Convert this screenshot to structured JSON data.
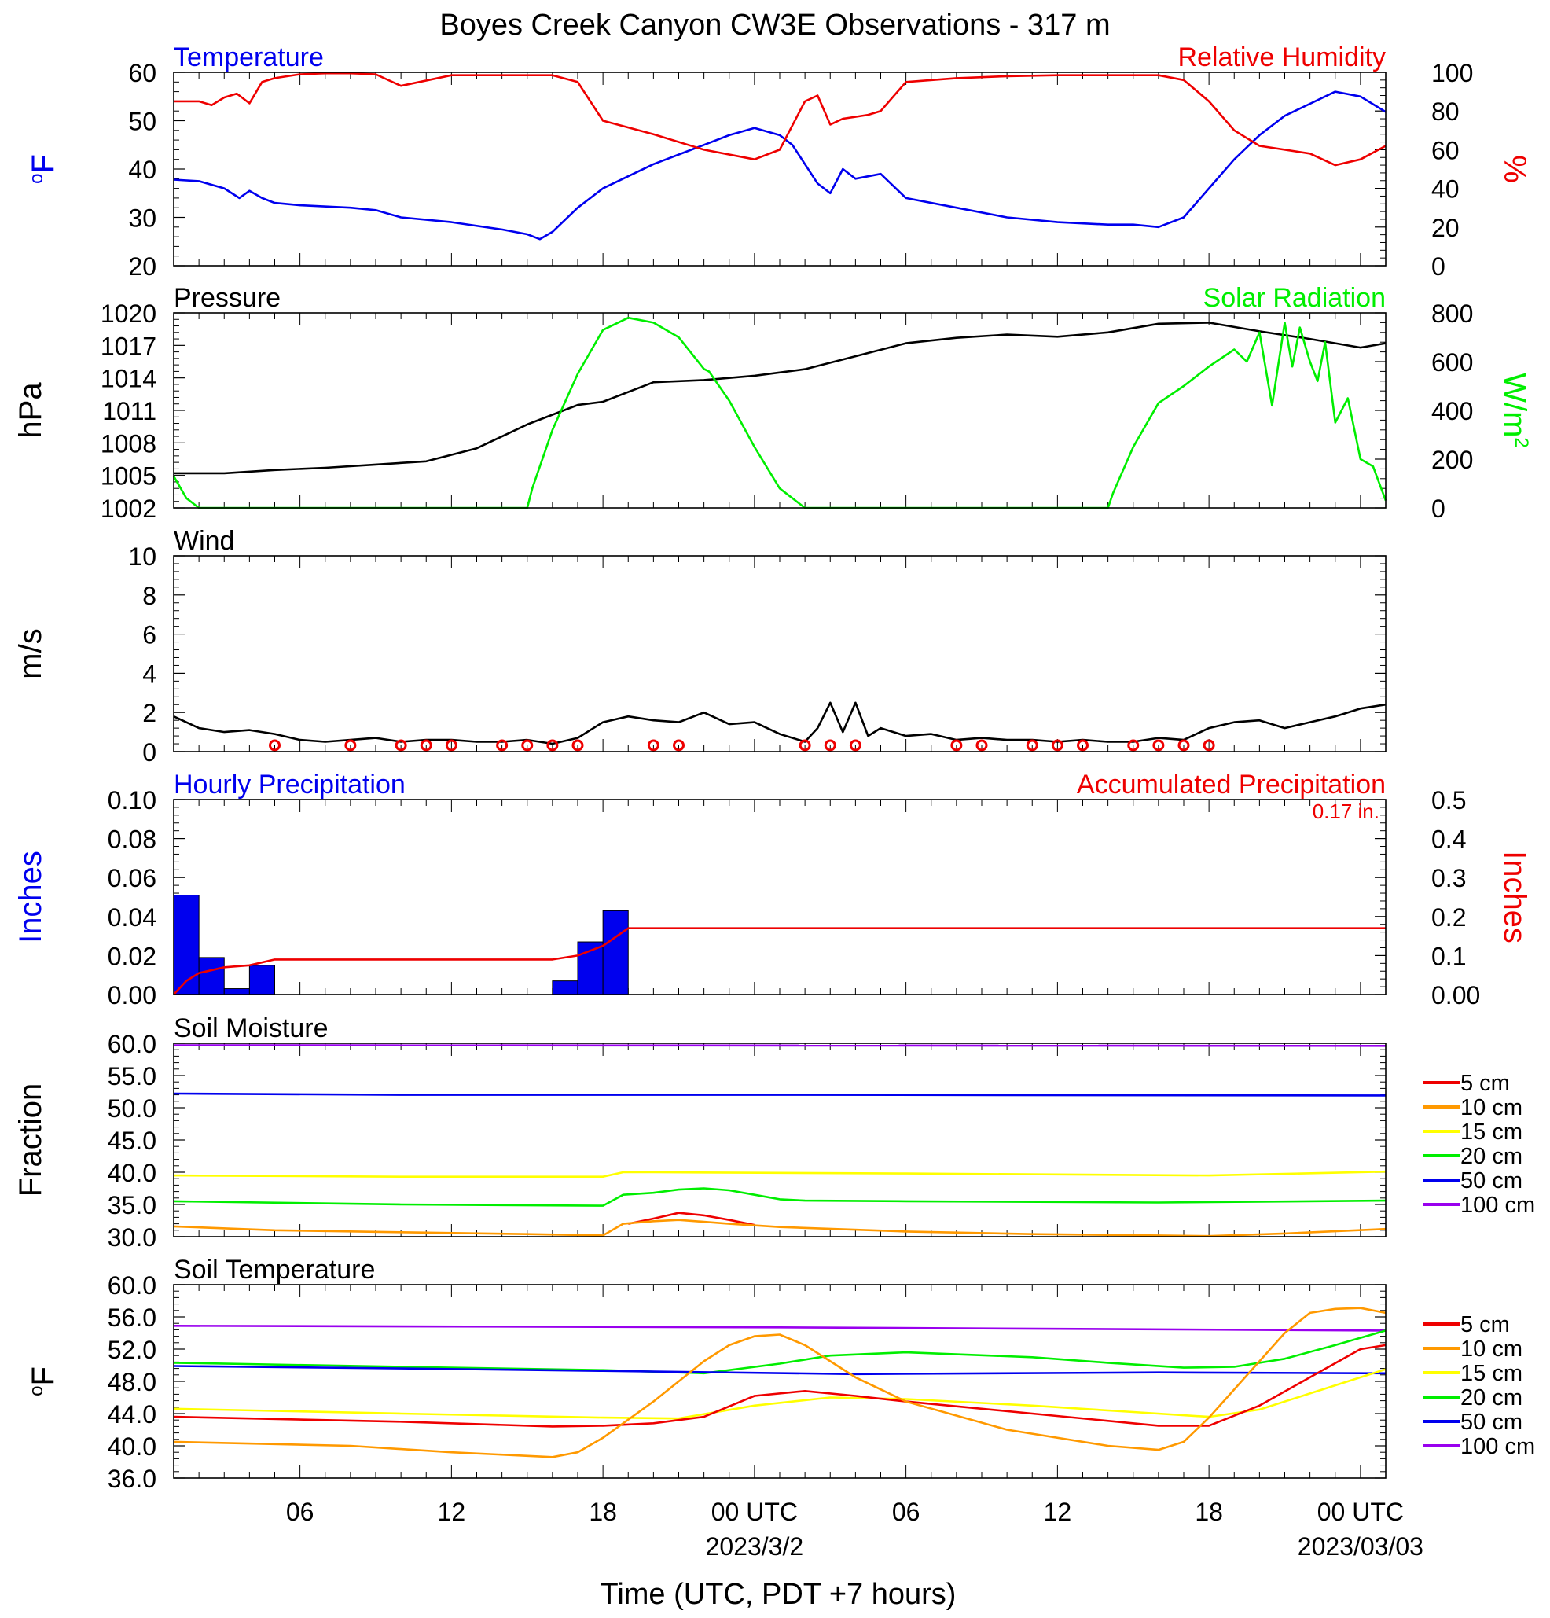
{
  "title": "Boyes Creek Canyon CW3E Observations - 317 m",
  "xaxis": {
    "ticks": [
      "06",
      "12",
      "18",
      "00 UTC",
      "06",
      "12",
      "18",
      "00 UTC"
    ],
    "tick_hours": [
      6,
      12,
      18,
      24,
      30,
      36,
      42,
      48
    ],
    "date_labels": [
      {
        "text": "2023/3/2",
        "hour": 24
      },
      {
        "text": "2023/03/03",
        "hour": 48
      }
    ],
    "label": "Time (UTC, PDT +7 hours)",
    "range_hours": [
      1,
      49
    ]
  },
  "colors": {
    "blue": "#0000ee",
    "red": "#ee0000",
    "green": "#00ee00",
    "black": "#000000",
    "orange": "#ff9900",
    "yellow": "#ffff00",
    "purple": "#9900ee"
  },
  "chart_data": [
    {
      "type": "line",
      "name": "temperature_rh",
      "left_title": "Temperature",
      "right_title": "Relative Humidity",
      "ylabel_left": "°F",
      "ylabel_right": "%",
      "yticks_left": [
        "60",
        "50",
        "40",
        "30",
        "20"
      ],
      "yticks_right": [
        "100",
        "80",
        "60",
        "40",
        "20",
        "0"
      ],
      "ylim_left": [
        20,
        60
      ],
      "ylim_right": [
        0,
        100
      ],
      "series": [
        {
          "axis": "left",
          "color": "#0000ee",
          "x": [
            1,
            2,
            3,
            3.6,
            4,
            4.5,
            5,
            6,
            8,
            9,
            10,
            12,
            14,
            15,
            15.5,
            16,
            17,
            18,
            20,
            22,
            23,
            24,
            25,
            25.5,
            26,
            26.5,
            27,
            27.5,
            28,
            29,
            30,
            32,
            34,
            36,
            38,
            39,
            40,
            41,
            42,
            43,
            44,
            45,
            46,
            47,
            48,
            49
          ],
          "y": [
            37.8,
            37.5,
            36,
            34,
            35.5,
            34,
            33,
            32.5,
            32,
            31.5,
            30,
            29,
            27.5,
            26.5,
            25.5,
            27,
            32,
            36,
            41,
            45,
            47,
            48.5,
            47,
            45,
            41,
            37,
            35,
            40,
            38,
            39,
            34,
            32,
            30,
            29,
            28.5,
            28.5,
            28,
            30,
            36,
            42,
            47,
            51,
            53.5,
            56,
            55,
            51.8
          ]
        },
        {
          "axis": "right",
          "color": "#ee0000",
          "x": [
            1,
            2,
            2.5,
            3,
            3.5,
            4,
            4.5,
            5,
            6,
            7,
            8,
            9,
            10,
            12,
            14,
            16,
            17,
            18,
            20,
            22,
            24,
            25,
            26,
            26.5,
            27,
            27.5,
            28,
            28.5,
            29,
            30,
            32,
            34,
            36,
            38,
            40,
            41,
            42,
            43,
            44,
            46,
            47,
            48,
            49
          ],
          "y": [
            85,
            85,
            83,
            87,
            89,
            84,
            95,
            97,
            99,
            99.5,
            99.5,
            99,
            93,
            98.5,
            98.5,
            98.5,
            95,
            75,
            68,
            60,
            55,
            60,
            85,
            88,
            73,
            76,
            77,
            78,
            80,
            95,
            97,
            98,
            98.5,
            98.5,
            98.5,
            96,
            85,
            70,
            62,
            58,
            52,
            55,
            62
          ]
        }
      ]
    },
    {
      "type": "line",
      "name": "pressure_solar",
      "left_title": "Pressure",
      "right_title": "Solar Radiation",
      "ylabel_left": "hPa",
      "ylabel_right": "W/m",
      "ylabel_right_sup": "2",
      "yticks_left": [
        "1020",
        "1017",
        "1014",
        "1011",
        "1008",
        "1005",
        "1002"
      ],
      "yticks_right": [
        "800",
        "600",
        "400",
        "200",
        "0"
      ],
      "ylim_left": [
        1002,
        1020
      ],
      "ylim_right": [
        0,
        800
      ],
      "series": [
        {
          "axis": "left",
          "color": "#000000",
          "x": [
            1,
            3,
            5,
            7,
            9,
            11,
            13,
            15,
            17,
            18,
            20,
            22,
            24,
            26,
            28,
            30,
            32,
            34,
            36,
            38,
            40,
            42,
            44,
            46,
            48,
            49
          ],
          "y": [
            1005.2,
            1005.2,
            1005.5,
            1005.7,
            1006,
            1006.3,
            1007.5,
            1009.7,
            1011.5,
            1011.8,
            1013.6,
            1013.8,
            1014.2,
            1014.8,
            1016,
            1017.2,
            1017.7,
            1018,
            1017.8,
            1018.2,
            1019,
            1019.1,
            1018.3,
            1017.6,
            1016.8,
            1017.2
          ]
        },
        {
          "axis": "right",
          "color": "#00ee00",
          "x": [
            1,
            1.5,
            2,
            15,
            15.2,
            16,
            17,
            18,
            19,
            20,
            21,
            22,
            22.2,
            23,
            24,
            25,
            26,
            27,
            38,
            38.2,
            39,
            40,
            41,
            42,
            43,
            43.5,
            44,
            44.5,
            45,
            45.3,
            45.6,
            46,
            46.3,
            46.6,
            47,
            47.5,
            48,
            48.5,
            49
          ],
          "y": [
            130,
            40,
            0,
            0,
            80,
            320,
            550,
            730,
            780,
            760,
            700,
            570,
            560,
            440,
            250,
            80,
            0,
            0,
            0,
            60,
            250,
            430,
            500,
            580,
            650,
            600,
            720,
            420,
            760,
            580,
            740,
            600,
            520,
            680,
            350,
            450,
            200,
            170,
            30
          ]
        }
      ]
    },
    {
      "type": "line",
      "name": "wind",
      "left_title": "Wind",
      "ylabel_left": "m/s",
      "yticks_left": [
        "10",
        "8",
        "6",
        "4",
        "2",
        "0"
      ],
      "ylim_left": [
        0,
        10
      ],
      "series": [
        {
          "axis": "left",
          "color": "#000000",
          "x": [
            1,
            2,
            3,
            4,
            5,
            6,
            7,
            8,
            9,
            10,
            11,
            12,
            13,
            14,
            15,
            16,
            17,
            18,
            19,
            20,
            21,
            22,
            23,
            24,
            25,
            26,
            26.5,
            27,
            27.5,
            28,
            28.5,
            29,
            30,
            31,
            32,
            33,
            34,
            35,
            36,
            37,
            38,
            39,
            40,
            41,
            42,
            43,
            44,
            45,
            46,
            47,
            48,
            49
          ],
          "y": [
            1.8,
            1.2,
            1.0,
            1.1,
            0.9,
            0.6,
            0.5,
            0.6,
            0.7,
            0.5,
            0.6,
            0.6,
            0.5,
            0.5,
            0.6,
            0.4,
            0.7,
            1.5,
            1.8,
            1.6,
            1.5,
            2.0,
            1.4,
            1.5,
            0.9,
            0.5,
            1.2,
            2.5,
            1.0,
            2.5,
            0.8,
            1.2,
            0.8,
            0.9,
            0.6,
            0.7,
            0.6,
            0.6,
            0.5,
            0.6,
            0.5,
            0.5,
            0.7,
            0.6,
            1.2,
            1.5,
            1.6,
            1.2,
            1.5,
            1.8,
            2.2,
            2.4
          ]
        }
      ],
      "barbs_color": "#ee0000"
    },
    {
      "type": "bar",
      "name": "precipitation",
      "left_title": "Hourly Precipitation",
      "right_title": "Accumulated Precipitation",
      "annotation": "0.17 in.",
      "ylabel_left": "Inches",
      "ylabel_right": "Inches",
      "yticks_left": [
        "0.10",
        "0.08",
        "0.06",
        "0.04",
        "0.02",
        "0.00"
      ],
      "yticks_right": [
        "0.5",
        "0.4",
        "0.3",
        "0.2",
        "0.1",
        "0.00"
      ],
      "ylim_left": [
        0,
        0.1
      ],
      "ylim_right": [
        0,
        0.5
      ],
      "bars": {
        "color": "#0000ee",
        "start_hours": [
          1,
          2,
          3,
          4,
          16,
          17,
          18
        ],
        "values": [
          0.051,
          0.019,
          0.003,
          0.015,
          0.007,
          0.027,
          0.043
        ]
      },
      "series": [
        {
          "axis": "right",
          "color": "#ee0000",
          "x": [
            1,
            1.5,
            2,
            3,
            4,
            5,
            6,
            16,
            17,
            18,
            19,
            49
          ],
          "y": [
            0.0,
            0.035,
            0.055,
            0.07,
            0.075,
            0.09,
            0.09,
            0.09,
            0.1,
            0.125,
            0.17,
            0.17
          ]
        }
      ]
    },
    {
      "type": "line",
      "name": "soil_moisture",
      "left_title": "Soil Moisture",
      "ylabel_left": "Fraction",
      "yticks_left": [
        "60.0",
        "55.0",
        "50.0",
        "45.0",
        "40.0",
        "35.0",
        "30.0"
      ],
      "ylim_left": [
        30,
        60
      ],
      "legend": [
        "5 cm",
        "10 cm",
        "15 cm",
        "20 cm",
        "50 cm",
        "100 cm"
      ],
      "legend_colors": [
        "#ee0000",
        "#ff9900",
        "#ffff00",
        "#00ee00",
        "#0000ee",
        "#9900ee"
      ],
      "series": [
        {
          "name": "100 cm",
          "color": "#9900ee",
          "x": [
            1,
            49
          ],
          "y": [
            59.7,
            59.6
          ]
        },
        {
          "name": "50 cm",
          "color": "#0000ee",
          "x": [
            1,
            10,
            25,
            49
          ],
          "y": [
            52.2,
            52.0,
            52.0,
            51.9
          ]
        },
        {
          "name": "15 cm",
          "color": "#ffff00",
          "x": [
            1,
            10,
            18,
            18.8,
            20,
            30,
            42,
            49
          ],
          "y": [
            39.5,
            39.3,
            39.3,
            40.0,
            40.0,
            39.8,
            39.5,
            40.1
          ]
        },
        {
          "name": "20 cm",
          "color": "#00ee00",
          "x": [
            1,
            10,
            18,
            18.8,
            20,
            21,
            22,
            23,
            24,
            25,
            26,
            30,
            40,
            49
          ],
          "y": [
            35.5,
            35.0,
            34.8,
            36.5,
            36.8,
            37.3,
            37.5,
            37.2,
            36.5,
            35.8,
            35.6,
            35.5,
            35.3,
            35.6
          ]
        },
        {
          "name": "5 cm",
          "color": "#ee0000",
          "x": [
            19,
            20,
            21,
            22,
            23,
            24
          ],
          "y": [
            32.0,
            32.8,
            33.7,
            33.3,
            32.6,
            31.8
          ]
        },
        {
          "name": "10 cm",
          "color": "#ff9900",
          "x": [
            1,
            5,
            10,
            15,
            18,
            18.8,
            20,
            21,
            22,
            23,
            25,
            30,
            35,
            40,
            42,
            45,
            49
          ],
          "y": [
            31.6,
            31.0,
            30.7,
            30.4,
            30.2,
            32.0,
            32.4,
            32.6,
            32.3,
            32.0,
            31.5,
            30.8,
            30.4,
            30.2,
            30.1,
            30.5,
            31.2
          ]
        }
      ]
    },
    {
      "type": "line",
      "name": "soil_temperature",
      "left_title": "Soil Temperature",
      "ylabel_left": "°F",
      "yticks_left": [
        "60.0",
        "56.0",
        "52.0",
        "48.0",
        "44.0",
        "40.0",
        "36.0"
      ],
      "ylim_left": [
        36,
        60
      ],
      "legend": [
        "5 cm",
        "10 cm",
        "15 cm",
        "20 cm",
        "50 cm",
        "100 cm"
      ],
      "legend_colors": [
        "#ee0000",
        "#ff9900",
        "#ffff00",
        "#00ee00",
        "#0000ee",
        "#9900ee"
      ],
      "series": [
        {
          "name": "100 cm",
          "color": "#9900ee",
          "x": [
            1,
            25,
            49
          ],
          "y": [
            54.9,
            54.7,
            54.3
          ]
        },
        {
          "name": "20 cm",
          "color": "#00ee00",
          "x": [
            1,
            10,
            18,
            22,
            25,
            27,
            30,
            35,
            38,
            41,
            43,
            45,
            47,
            49
          ],
          "y": [
            50.3,
            49.8,
            49.4,
            49.0,
            50.2,
            51.2,
            51.6,
            51.0,
            50.3,
            49.7,
            49.8,
            50.8,
            52.5,
            54.3
          ]
        },
        {
          "name": "50 cm",
          "color": "#0000ee",
          "x": [
            1,
            10,
            18,
            28,
            40,
            49
          ],
          "y": [
            49.9,
            49.6,
            49.3,
            48.9,
            49.1,
            49.0
          ]
        },
        {
          "name": "15 cm",
          "color": "#ffff00",
          "x": [
            1,
            10,
            18,
            21,
            24,
            27,
            30,
            35,
            39,
            42,
            44,
            46,
            49
          ],
          "y": [
            44.6,
            44.0,
            43.5,
            43.4,
            45.0,
            46.0,
            45.8,
            45.0,
            44.2,
            43.6,
            44.5,
            46.5,
            49.5
          ]
        },
        {
          "name": "5 cm",
          "color": "#ee0000",
          "x": [
            1,
            10,
            16,
            18,
            20,
            22,
            24,
            26,
            28,
            30,
            35,
            40,
            42,
            44,
            46,
            48,
            49
          ],
          "y": [
            43.6,
            43.0,
            42.4,
            42.5,
            42.8,
            43.6,
            46.2,
            46.8,
            46.2,
            45.5,
            44.0,
            42.5,
            42.5,
            45.0,
            48.5,
            52.0,
            52.5
          ]
        },
        {
          "name": "10 cm",
          "color": "#ff9900",
          "x": [
            1,
            8,
            12,
            16,
            17,
            18,
            20,
            22,
            23,
            24,
            25,
            26,
            28,
            30,
            34,
            38,
            40,
            41,
            42,
            43,
            44,
            45,
            46,
            47,
            48,
            49
          ],
          "y": [
            40.5,
            40.0,
            39.2,
            38.6,
            39.2,
            41.0,
            45.5,
            50.5,
            52.5,
            53.6,
            53.8,
            52.5,
            48.5,
            45.5,
            42.0,
            40.0,
            39.5,
            40.5,
            43.5,
            47.0,
            50.5,
            54.0,
            56.5,
            57.0,
            57.1,
            56.5
          ]
        }
      ]
    }
  ]
}
